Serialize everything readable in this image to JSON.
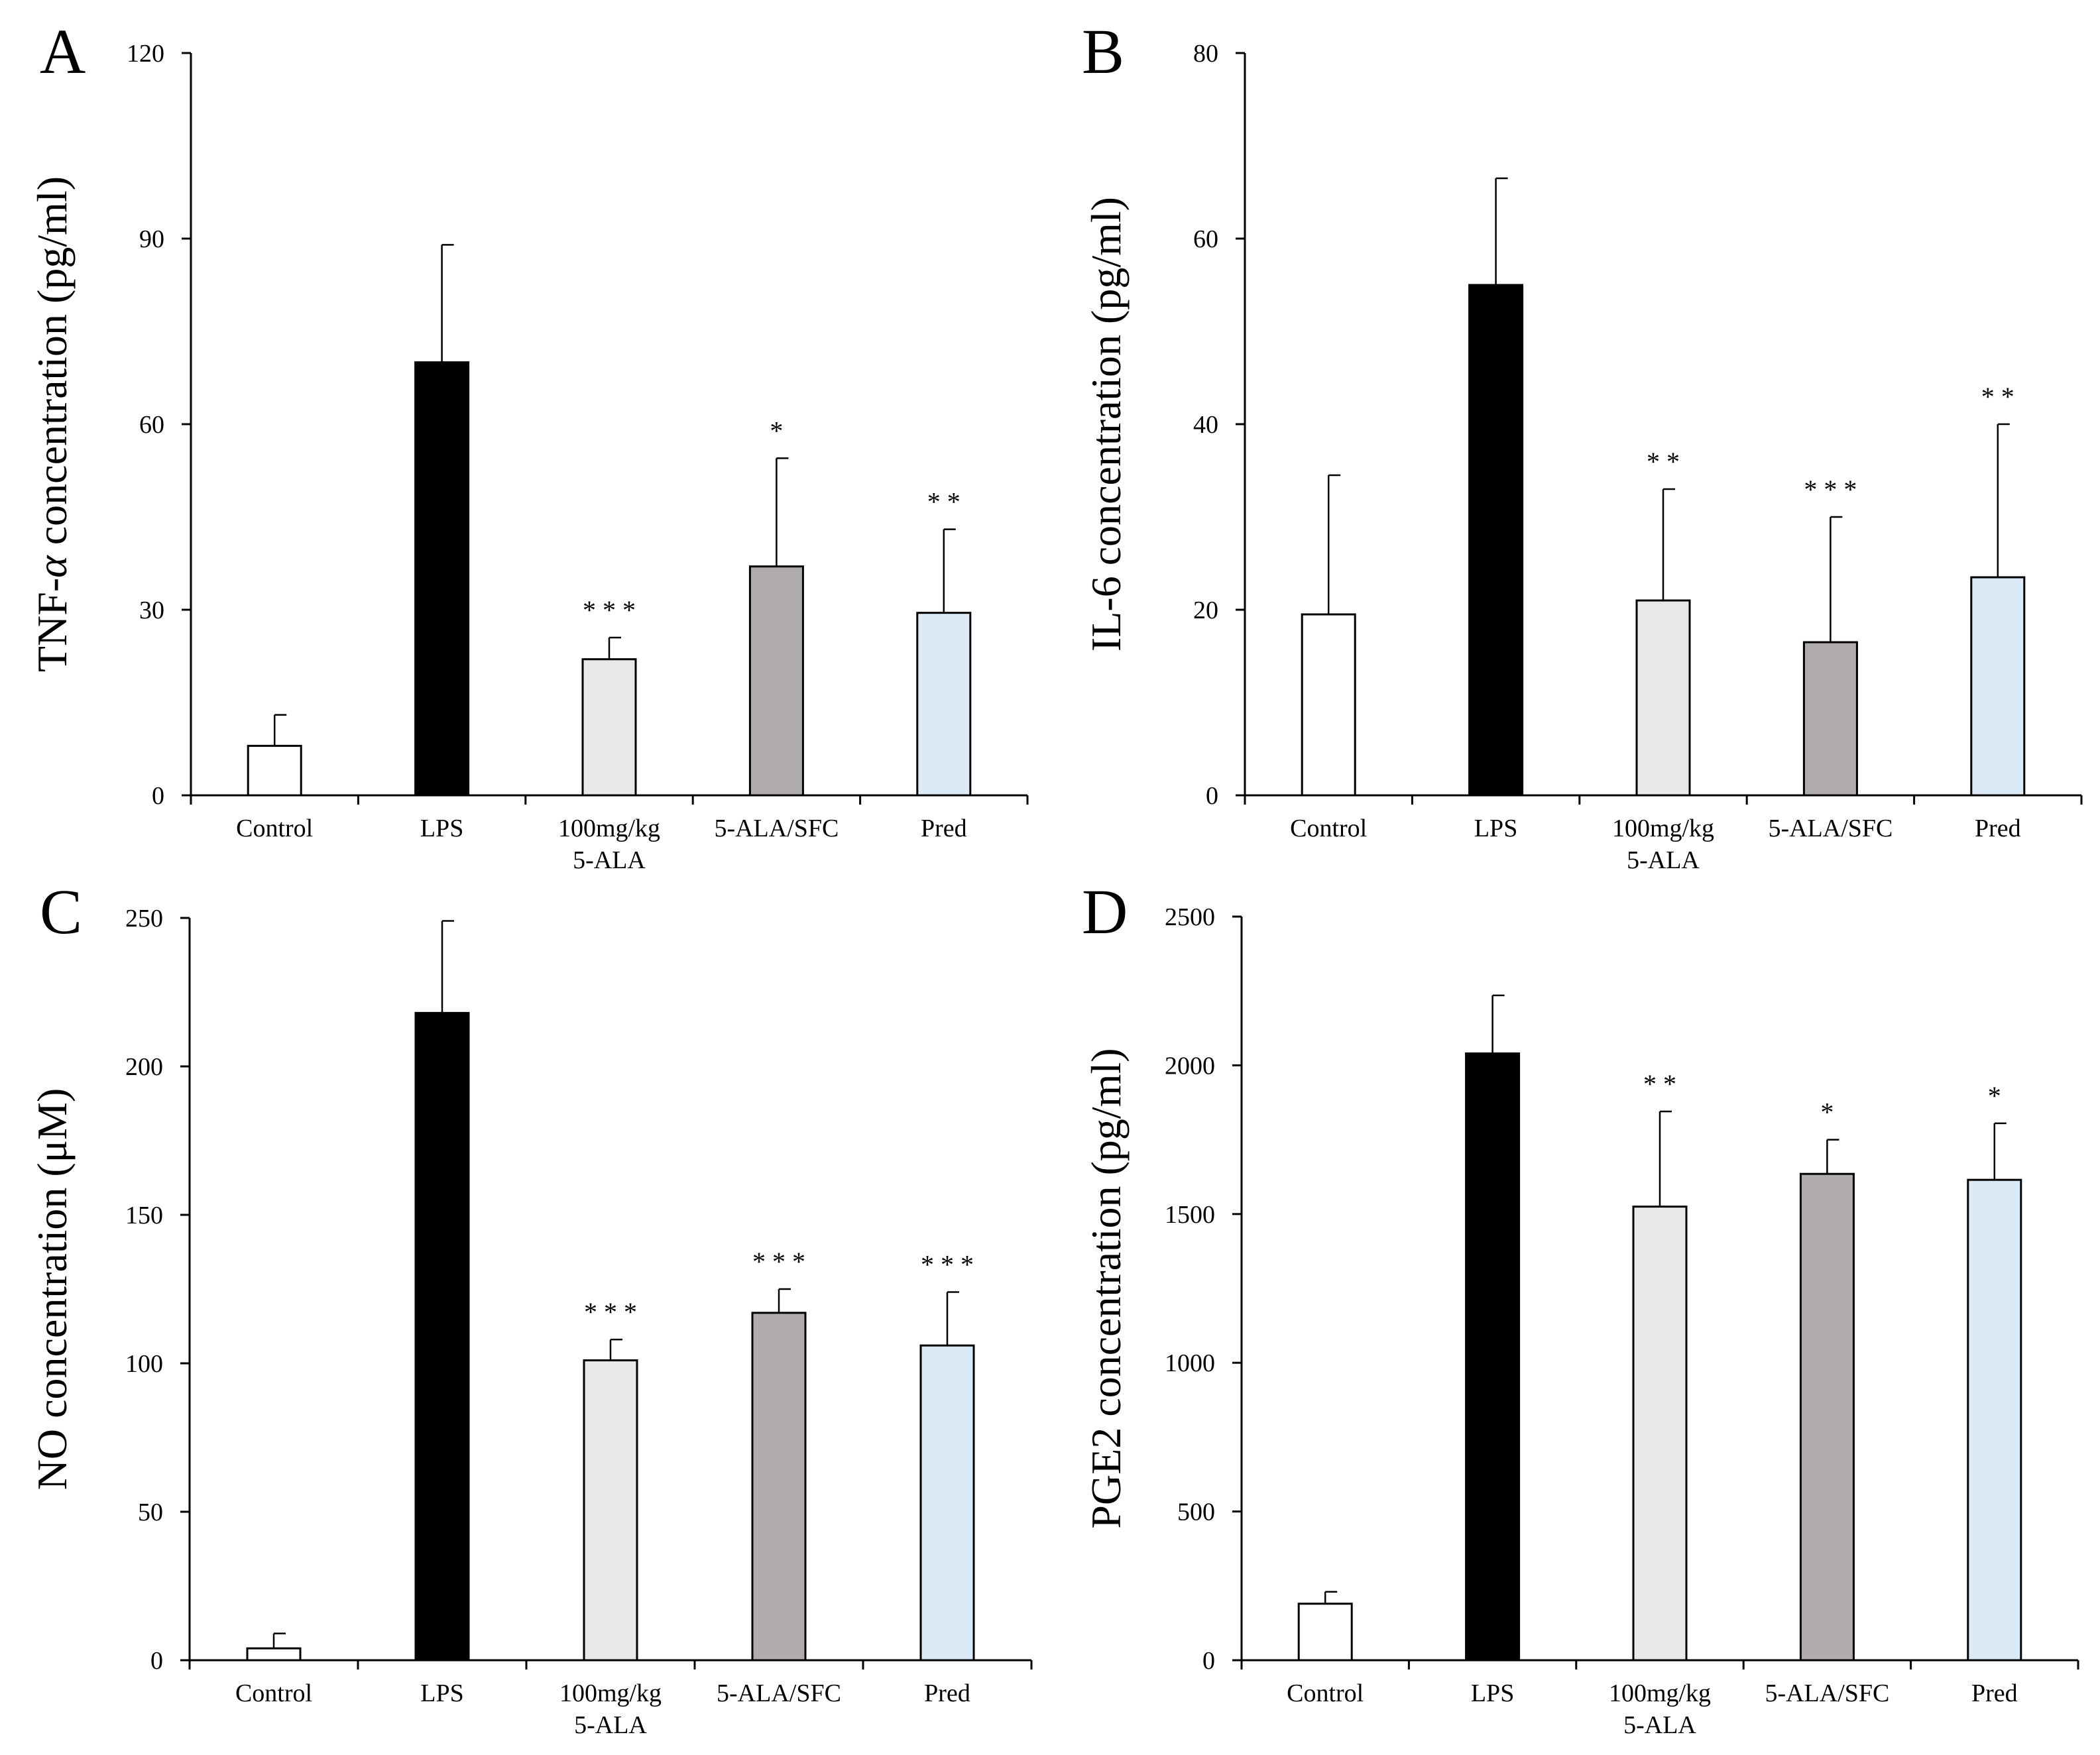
{
  "figure": {
    "categories": [
      "Control",
      "LPS",
      "100mg/kg\n5-ALA",
      "5-ALA/SFC",
      "Pred"
    ],
    "bar_colors": [
      "#ffffff",
      "#000000",
      "#e8e8e8",
      "#b0acac",
      "#dbeaf7"
    ],
    "edge_color": "#000000"
  },
  "chart_data": [
    {
      "type": "bar",
      "panel": "A",
      "title": "",
      "ylabel_pre": "TNF-",
      "ylabel_greek": "α",
      "ylabel_post": " concentration (pg/ml)",
      "xlabel": "",
      "ylim": [
        0,
        120
      ],
      "yticks": [
        0,
        30,
        60,
        90,
        120
      ],
      "categories": [
        "Control",
        "LPS",
        "100mg/kg\n5-ALA",
        "5-ALA/SFC",
        "Pred"
      ],
      "values": [
        8,
        70,
        22,
        37,
        29.5
      ],
      "errors": [
        5,
        19,
        3.5,
        17.5,
        13.5
      ],
      "significance": [
        "",
        "",
        "* * *",
        "*",
        "* *"
      ]
    },
    {
      "type": "bar",
      "panel": "B",
      "title": "",
      "ylabel_pre": "IL-6 concentration (pg/ml)",
      "ylabel_greek": "",
      "ylabel_post": "",
      "xlabel": "",
      "ylim": [
        0,
        80
      ],
      "yticks": [
        0,
        20,
        40,
        60,
        80
      ],
      "categories": [
        "Control",
        "LPS",
        "100mg/kg\n5-ALA",
        "5-ALA/SFC",
        "Pred"
      ],
      "values": [
        19.5,
        55,
        21,
        16.5,
        23.5
      ],
      "errors": [
        15,
        11.5,
        12,
        13.5,
        16.5
      ],
      "significance": [
        "",
        "",
        "* *",
        "* * *",
        "* *"
      ]
    },
    {
      "type": "bar",
      "panel": "C",
      "title": "",
      "ylabel_pre": "NO concentration (μM)",
      "ylabel_greek": "",
      "ylabel_post": "",
      "xlabel": "",
      "ylim": [
        0,
        250
      ],
      "yticks": [
        0,
        50,
        100,
        150,
        200,
        250
      ],
      "categories": [
        "Control",
        "LPS",
        "100mg/kg\n5-ALA",
        "5-ALA/SFC",
        "Pred"
      ],
      "values": [
        4,
        218,
        101,
        117,
        106
      ],
      "errors": [
        5,
        31,
        7,
        8,
        18
      ],
      "significance": [
        "",
        "",
        "* * *",
        "* * *",
        "* * *"
      ]
    },
    {
      "type": "bar",
      "panel": "D",
      "title": "",
      "ylabel_pre": "PGE2 concentration (pg/ml)",
      "ylabel_greek": "",
      "ylabel_post": "",
      "xlabel": "",
      "ylim": [
        0,
        2500
      ],
      "yticks": [
        0,
        500,
        1000,
        1500,
        2000,
        2500
      ],
      "categories": [
        "Control",
        "LPS",
        "100mg/kg\n5-ALA",
        "5-ALA/SFC",
        "Pred"
      ],
      "values": [
        190,
        2040,
        1525,
        1635,
        1615
      ],
      "errors": [
        40,
        195,
        320,
        115,
        190
      ],
      "significance": [
        "",
        "",
        "* *",
        "*",
        "*"
      ]
    }
  ]
}
